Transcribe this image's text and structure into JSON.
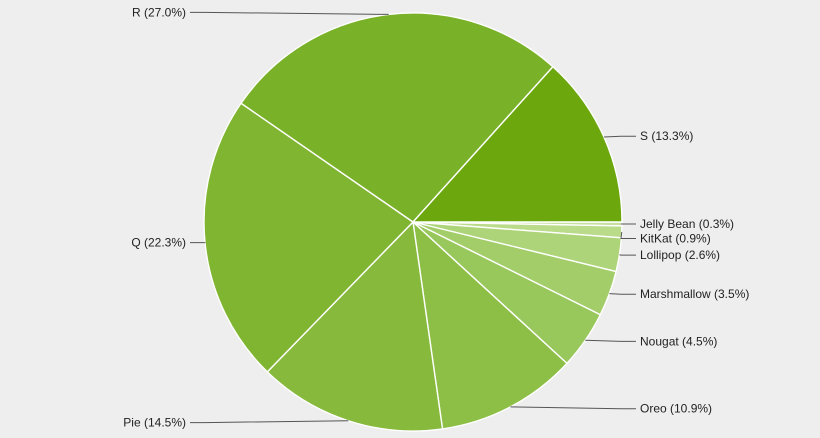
{
  "chart_data": {
    "type": "pie",
    "title": "",
    "start": "east",
    "direction": "clockwise",
    "legend": "none",
    "slices": [
      {
        "name": "Jelly Bean",
        "value": 0.3,
        "label": "Jelly Bean (0.3%)",
        "color": "#c7df9f",
        "label_side": "right"
      },
      {
        "name": "KitKat",
        "value": 0.9,
        "label": "KitKat (0.9%)",
        "color": "#badb89",
        "label_side": "right"
      },
      {
        "name": "Lollipop",
        "value": 2.6,
        "label": "Lollipop (2.6%)",
        "color": "#add478",
        "label_side": "right"
      },
      {
        "name": "Marshmallow",
        "value": 3.5,
        "label": "Marshmallow (3.5%)",
        "color": "#a2cd69",
        "label_side": "right"
      },
      {
        "name": "Nougat",
        "value": 4.5,
        "label": "Nougat (4.5%)",
        "color": "#98c75c",
        "label_side": "right"
      },
      {
        "name": "Oreo",
        "value": 10.9,
        "label": "Oreo (10.9%)",
        "color": "#8dbf47",
        "label_side": "right"
      },
      {
        "name": "Pie",
        "value": 14.5,
        "label": "Pie (14.5%)",
        "color": "#86b93c",
        "label_side": "left"
      },
      {
        "name": "Q",
        "value": 22.3,
        "label": "Q (22.3%)",
        "color": "#80b532",
        "label_side": "left"
      },
      {
        "name": "R",
        "value": 27.0,
        "label": "R (27.0%)",
        "color": "#79b128",
        "label_side": "left"
      },
      {
        "name": "S",
        "value": 13.3,
        "label": "S (13.3%)",
        "color": "#6ca80d",
        "label_side": "right"
      }
    ]
  }
}
